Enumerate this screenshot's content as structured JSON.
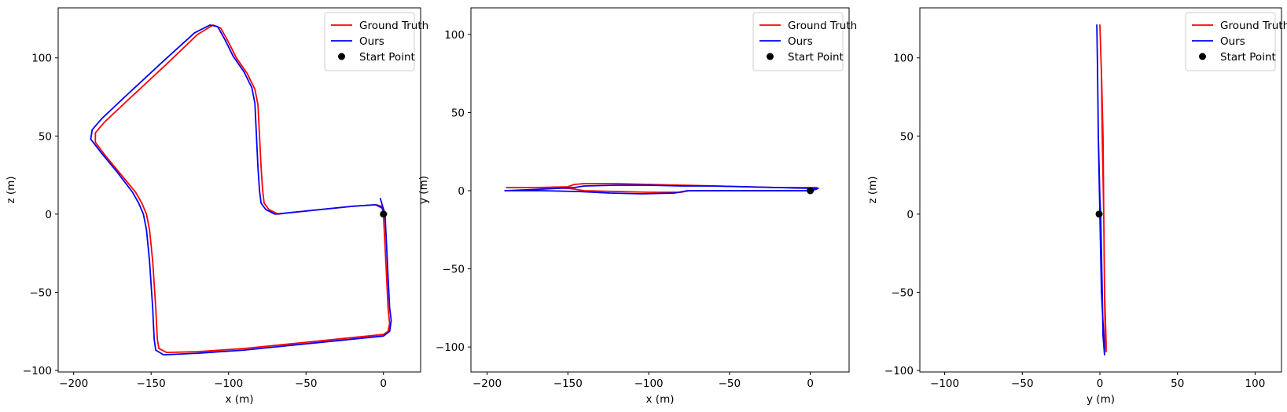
{
  "chart_data": [
    {
      "type": "line",
      "xlabel": "x (m)",
      "ylabel": "z (m)",
      "xlim": [
        -210,
        24
      ],
      "ylim": [
        -101,
        132
      ],
      "xticks": [
        -200,
        -150,
        -100,
        -50,
        0
      ],
      "yticks": [
        -100,
        -50,
        0,
        50,
        100
      ],
      "xtick_labels": [
        "−200",
        "−150",
        "−100",
        "−50",
        "0"
      ],
      "ytick_labels": [
        "−100",
        "−50",
        "0",
        "50",
        "100"
      ],
      "legend_position": "top-right",
      "series": [
        {
          "name": "Ground Truth",
          "color": "#ff0000",
          "points": [
            [
              0,
              0
            ],
            [
              1,
              -20
            ],
            [
              2,
              -40
            ],
            [
              3,
              -60
            ],
            [
              4,
              -70
            ],
            [
              3,
              -75
            ],
            [
              0,
              -77
            ],
            [
              -30,
              -80
            ],
            [
              -60,
              -83
            ],
            [
              -90,
              -86
            ],
            [
              -120,
              -88
            ],
            [
              -140,
              -88.5
            ],
            [
              -145,
              -86
            ],
            [
              -146,
              -80
            ],
            [
              -147,
              -60
            ],
            [
              -149,
              -30
            ],
            [
              -151,
              -10
            ],
            [
              -153,
              0
            ],
            [
              -156,
              7
            ],
            [
              -160,
              14
            ],
            [
              -170,
              26
            ],
            [
              -180,
              38
            ],
            [
              -186,
              46
            ],
            [
              -186,
              52
            ],
            [
              -180,
              59
            ],
            [
              -165,
              73
            ],
            [
              -140,
              96
            ],
            [
              -120,
              115
            ],
            [
              -110,
              121
            ],
            [
              -105,
              119
            ],
            [
              -100,
              110
            ],
            [
              -95,
              100
            ],
            [
              -88,
              90
            ],
            [
              -83,
              80
            ],
            [
              -81,
              70
            ],
            [
              -80,
              50
            ],
            [
              -79,
              30
            ],
            [
              -78,
              15
            ],
            [
              -77,
              7
            ],
            [
              -74,
              3
            ],
            [
              -68,
              0
            ],
            [
              -60,
              1
            ],
            [
              -40,
              3
            ],
            [
              -20,
              5
            ],
            [
              -5,
              6
            ],
            [
              -1,
              5
            ],
            [
              0,
              0
            ]
          ]
        },
        {
          "name": "Ours",
          "color": "#0000ff",
          "points": [
            [
              -2,
              10
            ],
            [
              -0.5,
              5
            ],
            [
              1,
              0
            ],
            [
              2,
              -20
            ],
            [
              3,
              -40
            ],
            [
              4,
              -60
            ],
            [
              5,
              -68
            ],
            [
              4,
              -75
            ],
            [
              0,
              -78
            ],
            [
              -30,
              -81
            ],
            [
              -60,
              -84
            ],
            [
              -90,
              -87
            ],
            [
              -120,
              -89
            ],
            [
              -142,
              -90
            ],
            [
              -147,
              -87
            ],
            [
              -148,
              -80
            ],
            [
              -149,
              -60
            ],
            [
              -151,
              -30
            ],
            [
              -153,
              -10
            ],
            [
              -155,
              0
            ],
            [
              -158,
              7
            ],
            [
              -162,
              14
            ],
            [
              -172,
              27
            ],
            [
              -182,
              39
            ],
            [
              -189,
              48
            ],
            [
              -188,
              54
            ],
            [
              -182,
              61
            ],
            [
              -167,
              75
            ],
            [
              -142,
              98
            ],
            [
              -122,
              116
            ],
            [
              -112,
              121
            ],
            [
              -107,
              120
            ],
            [
              -102,
              111
            ],
            [
              -97,
              101
            ],
            [
              -90,
              91
            ],
            [
              -85,
              81
            ],
            [
              -83,
              71
            ],
            [
              -82,
              50
            ],
            [
              -81,
              30
            ],
            [
              -80,
              15
            ],
            [
              -79,
              7
            ],
            [
              -76,
              3
            ],
            [
              -70,
              0
            ],
            [
              -60,
              1
            ],
            [
              -40,
              3
            ],
            [
              -20,
              5
            ],
            [
              -5,
              6
            ],
            [
              -1,
              4
            ],
            [
              2,
              0
            ]
          ]
        }
      ],
      "start_point": {
        "name": "Start Point",
        "color": "#000000",
        "x": 0,
        "y": 0
      }
    },
    {
      "type": "line",
      "xlabel": "x (m)",
      "ylabel": "y (m)",
      "xlim": [
        -210,
        24
      ],
      "ylim": [
        -116,
        117
      ],
      "xticks": [
        -200,
        -150,
        -100,
        -50,
        0
      ],
      "yticks": [
        -100,
        -50,
        0,
        50,
        100
      ],
      "xtick_labels": [
        "−200",
        "−150",
        "−100",
        "−50",
        "0"
      ],
      "ytick_labels": [
        "−100",
        "−50",
        "0",
        "50",
        "100"
      ],
      "legend_position": "top-right",
      "series": [
        {
          "name": "Ground Truth",
          "color": "#ff0000",
          "points": [
            [
              0,
              0
            ],
            [
              -20,
              0
            ],
            [
              -40,
              0
            ],
            [
              -60,
              0
            ],
            [
              -75,
              0
            ],
            [
              -80,
              -1
            ],
            [
              -100,
              -1
            ],
            [
              -120,
              -0.5
            ],
            [
              -140,
              0
            ],
            [
              -146,
              1
            ],
            [
              -150,
              1.5
            ],
            [
              -170,
              2
            ],
            [
              -188,
              2
            ],
            [
              -170,
              2
            ],
            [
              -150,
              2.5
            ],
            [
              -146,
              4
            ],
            [
              -140,
              4.5
            ],
            [
              -120,
              4.5
            ],
            [
              -100,
              4
            ],
            [
              -80,
              3.5
            ],
            [
              -60,
              3
            ],
            [
              -40,
              2.5
            ],
            [
              -20,
              2
            ],
            [
              0,
              2
            ],
            [
              4,
              2
            ]
          ]
        },
        {
          "name": "Ours",
          "color": "#0000ff",
          "points": [
            [
              4,
              1
            ],
            [
              0,
              0
            ],
            [
              -20,
              0
            ],
            [
              -40,
              0
            ],
            [
              -60,
              0
            ],
            [
              -76,
              0
            ],
            [
              -84,
              -1.5
            ],
            [
              -104,
              -2
            ],
            [
              -124,
              -1.5
            ],
            [
              -144,
              -0.5
            ],
            [
              -166,
              0
            ],
            [
              -189,
              0
            ],
            [
              -166,
              1
            ],
            [
              -146,
              2
            ],
            [
              -140,
              3
            ],
            [
              -120,
              3.5
            ],
            [
              -100,
              3.5
            ],
            [
              -80,
              3
            ],
            [
              -60,
              3
            ],
            [
              -40,
              2.5
            ],
            [
              -20,
              2
            ],
            [
              0,
              1.5
            ],
            [
              5,
              1.5
            ]
          ]
        }
      ],
      "start_point": {
        "name": "Start Point",
        "color": "#000000",
        "x": 0,
        "y": 0
      }
    },
    {
      "type": "line",
      "xlabel": "y (m)",
      "ylabel": "z (m)",
      "xlim": [
        -116,
        117
      ],
      "ylim": [
        -101,
        132
      ],
      "xticks": [
        -100,
        -50,
        0,
        50,
        100
      ],
      "yticks": [
        -100,
        -50,
        0,
        50,
        100
      ],
      "xtick_labels": [
        "−100",
        "−50",
        "0",
        "50",
        "100"
      ],
      "ytick_labels": [
        "−100",
        "−50",
        "0",
        "50",
        "100"
      ],
      "legend_position": "top-right",
      "series": [
        {
          "name": "Ground Truth",
          "color": "#ff0000",
          "points": [
            [
              0,
              121
            ],
            [
              1,
              90
            ],
            [
              2,
              50
            ],
            [
              2.5,
              0
            ],
            [
              3,
              -50
            ],
            [
              3.5,
              -82
            ],
            [
              4,
              -88
            ],
            [
              4,
              -82
            ],
            [
              3,
              -50
            ],
            [
              2.5,
              0
            ],
            [
              1.5,
              50
            ],
            [
              1,
              90
            ],
            [
              0,
              121
            ]
          ]
        },
        {
          "name": "Ours",
          "color": "#0000ff",
          "points": [
            [
              -2,
              121
            ],
            [
              -1.5,
              90
            ],
            [
              -1,
              50
            ],
            [
              0,
              10
            ],
            [
              0.5,
              0
            ],
            [
              1.5,
              -50
            ],
            [
              2,
              -78
            ],
            [
              3,
              -90
            ],
            [
              2.5,
              -78
            ],
            [
              1,
              -50
            ],
            [
              0,
              0
            ],
            [
              -1,
              50
            ],
            [
              -1.5,
              90
            ],
            [
              -2,
              121
            ]
          ]
        }
      ],
      "start_point": {
        "name": "Start Point",
        "color": "#000000",
        "x": -0.5,
        "y": 0
      }
    }
  ]
}
